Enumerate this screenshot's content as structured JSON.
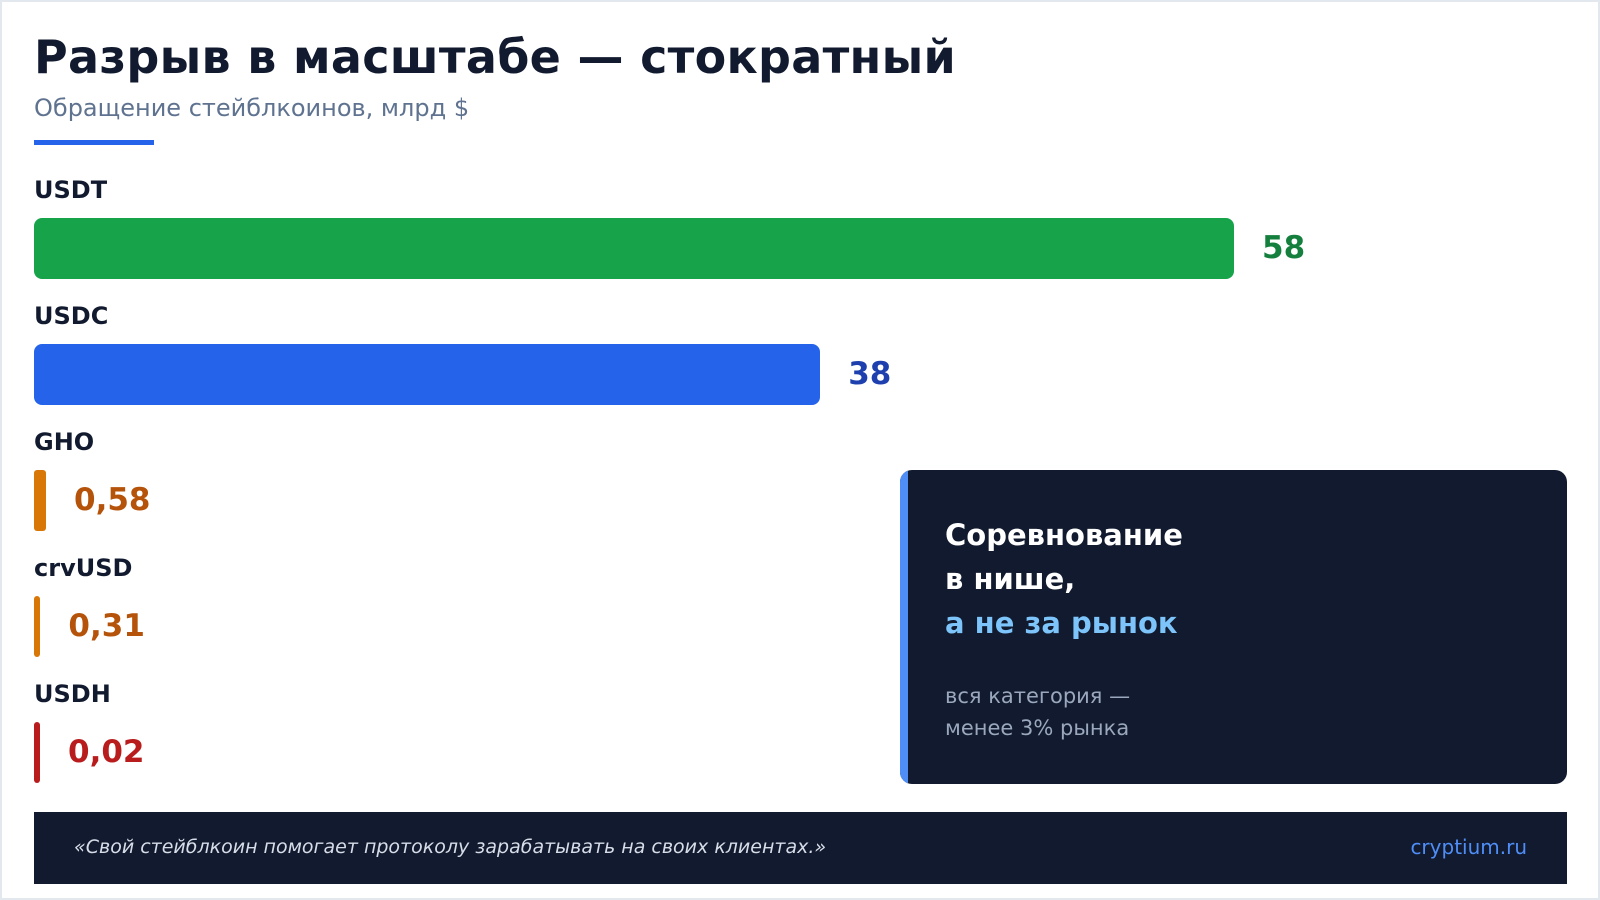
{
  "header": {
    "title": "Разрыв в масштабе — стократный",
    "subtitle": "Обращение стейблкоинов, млрд $",
    "accent_color": "#2563eb"
  },
  "chart_data": {
    "type": "bar",
    "orientation": "horizontal",
    "title": "Разрыв в масштабе — стократный",
    "subtitle": "Обращение стейблкоинов, млрд $",
    "xlabel": "",
    "ylabel": "",
    "categories": [
      "USDT",
      "USDC",
      "GHO",
      "crvUSD",
      "USDH"
    ],
    "values": [
      58,
      38,
      0.58,
      0.31,
      0.02
    ],
    "value_labels": [
      "58",
      "38",
      "0,58",
      "0,31",
      "0,02"
    ],
    "bar_colors": [
      "#16a34a",
      "#2563eb",
      "#d97706",
      "#d97706",
      "#b91c1c"
    ],
    "label_colors": [
      "#15803d",
      "#1e40af",
      "#b45309",
      "#b45309",
      "#b91c1c"
    ],
    "grid": false,
    "legend": "none"
  },
  "callout": {
    "line1": "Соревнование",
    "line2": "в нише,",
    "line3": "а не за рынок",
    "note_line1": "вся категория —",
    "note_line2": "менее 3% рынка"
  },
  "footer": {
    "quote": "«Свой стейблкоин помогает протоколу зарабатывать на своих клиентах.»",
    "brand": "cryptium.ru"
  }
}
